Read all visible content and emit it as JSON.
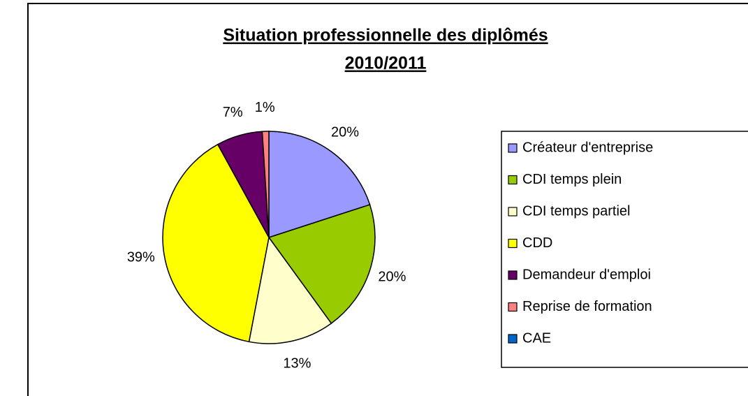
{
  "chart_data": {
    "type": "pie",
    "title": [
      "Situation professionnelle des diplômés",
      "2010/2011"
    ],
    "categories": [
      "Créateur d'entreprise",
      "CDI temps plein",
      "CDI temps partiel",
      "CDD",
      "Demandeur d'emploi",
      "Reprise de formation",
      "CAE"
    ],
    "values": [
      20,
      20,
      13,
      39,
      7,
      1,
      0
    ],
    "value_labels": [
      "20%",
      "20%",
      "13%",
      "39%",
      "7%",
      "1%",
      null
    ],
    "colors": [
      "#9999ff",
      "#99cc00",
      "#ffffcc",
      "#ffff00",
      "#660066",
      "#ff8080",
      "#0066cc"
    ],
    "legend": "right"
  }
}
